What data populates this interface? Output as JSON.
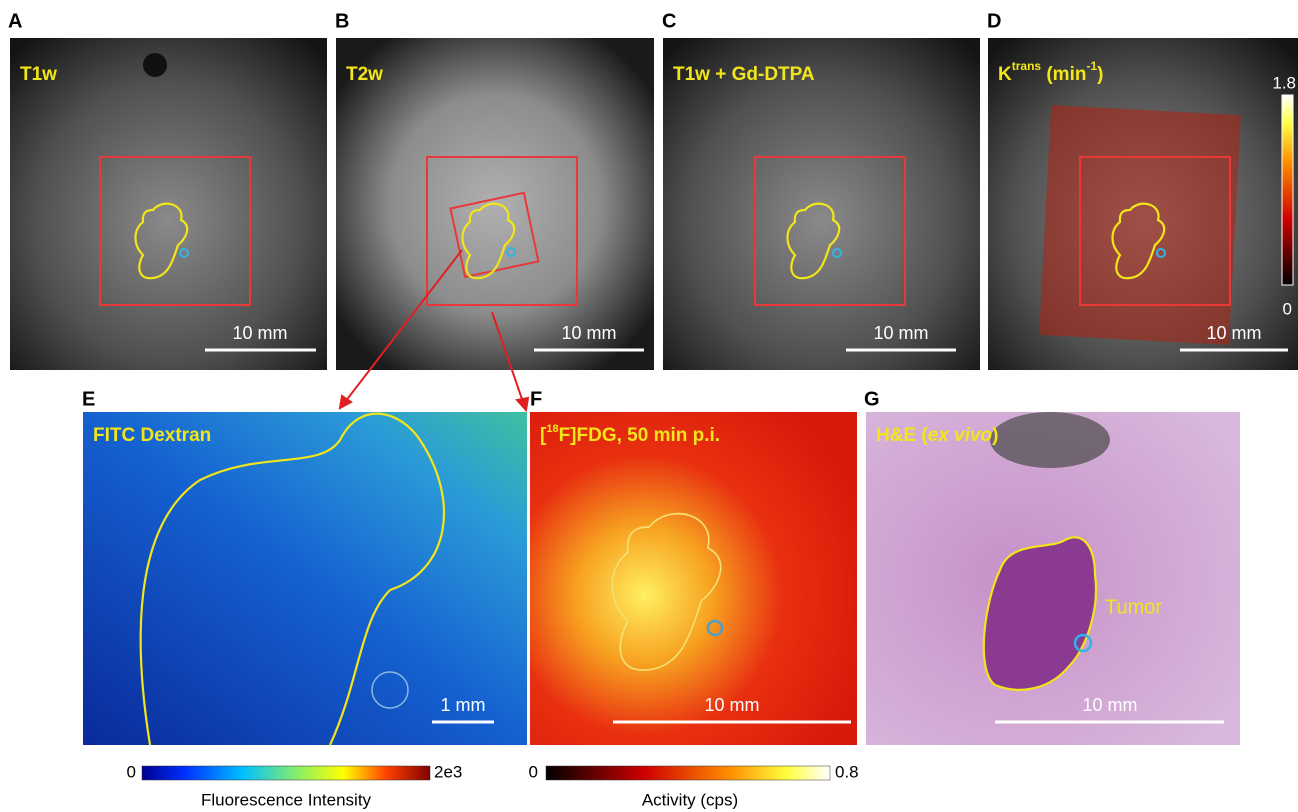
{
  "panels": [
    {
      "letter": "A",
      "label": "T1w",
      "scale_bar": "10 mm"
    },
    {
      "letter": "B",
      "label": "T2w",
      "scale_bar": "10 mm"
    },
    {
      "letter": "C",
      "label": "T1w + Gd-DTPA",
      "scale_bar": "10 mm"
    },
    {
      "letter": "D",
      "label": {
        "base": "K",
        "sup": "trans",
        "unit": " (min",
        "unit_sup": "-1",
        "close": ")"
      },
      "scale_bar": "10 mm",
      "colorbar": {
        "max": "1.8",
        "min": "0"
      }
    },
    {
      "letter": "E",
      "label": "FITC Dextran",
      "scale_bar": "1 mm",
      "colorbar": {
        "min": "0",
        "max": "2e3",
        "title": "Fluorescence Intensity"
      }
    },
    {
      "letter": "F",
      "label": {
        "open": "[",
        "sup": "18",
        "rest": "F]FDG, 50 min p.i."
      },
      "scale_bar": "10 mm",
      "colorbar": {
        "min": "0",
        "max": "0.8",
        "title": "Activity (cps)"
      }
    },
    {
      "letter": "G",
      "label": {
        "main": "H&E (",
        "italic": "ex vivo",
        "close": ")"
      },
      "scale_bar": "10 mm",
      "annotation": "Tumor"
    }
  ]
}
